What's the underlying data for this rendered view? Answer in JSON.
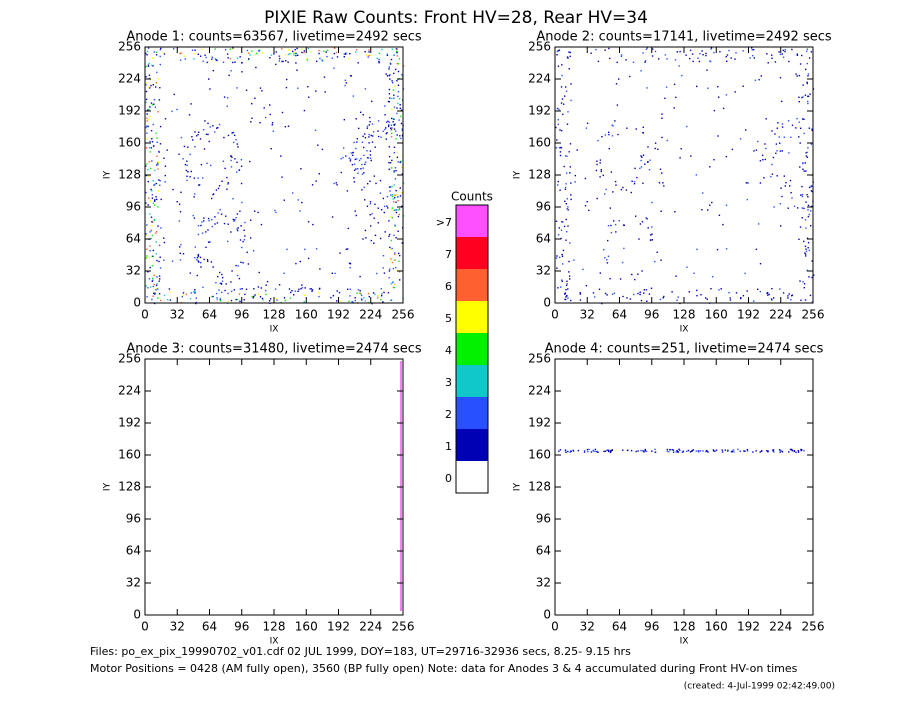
{
  "title": "PIXIE Raw Counts:  Front HV=28, Rear HV=34",
  "panels": [
    {
      "title": "Anode 1: counts=63567, livetime=2492 secs",
      "xlabel": "IX",
      "ylabel": "IY",
      "xticks": [
        0,
        32,
        64,
        96,
        128,
        160,
        192,
        224,
        256
      ],
      "yticks": [
        0,
        32,
        64,
        96,
        128,
        160,
        192,
        224,
        256
      ]
    },
    {
      "title": "Anode 2: counts=17141, livetime=2492 secs",
      "xlabel": "IX",
      "ylabel": "IY",
      "xticks": [
        0,
        32,
        64,
        96,
        128,
        160,
        192,
        224,
        256
      ],
      "yticks": [
        0,
        32,
        64,
        96,
        128,
        160,
        192,
        224,
        256
      ]
    },
    {
      "title": "Anode 3: counts=31480, livetime=2474 secs",
      "xlabel": "IX",
      "ylabel": "IY",
      "xticks": [
        0,
        32,
        64,
        96,
        128,
        160,
        192,
        224,
        256
      ],
      "yticks": [
        0,
        32,
        64,
        96,
        128,
        160,
        192,
        224,
        256
      ]
    },
    {
      "title": "Anode 4: counts=251, livetime=2474 secs",
      "xlabel": "IX",
      "ylabel": "IY",
      "xticks": [
        0,
        32,
        64,
        96,
        128,
        160,
        192,
        224,
        256
      ],
      "yticks": [
        0,
        32,
        64,
        96,
        128,
        160,
        192,
        224,
        256
      ]
    }
  ],
  "colorbar": {
    "title": "Counts",
    "labels": [
      ">7",
      "7",
      "6",
      "5",
      "4",
      "3",
      "2",
      "1",
      "0"
    ],
    "colors": [
      "#ff50ff",
      "#ff0020",
      "#ff6030",
      "#ffff00",
      "#00f000",
      "#10c8c8",
      "#2850ff",
      "#0000b4",
      "#ffffff"
    ]
  },
  "footer": {
    "files": "Files: po_ex_pix_19990702_v01.cdf   02 JUL 1999, DOY=183, UT=29716-32936 secs,  8.25- 9.15 hrs",
    "motor": "Motor Positions = 0428 (AM fully open), 3560 (BP fully open)    Note: data for Anodes 3 & 4 accumulated during Front HV-on times",
    "created": "(created:  4-Jul-1999 02:42:49.00)"
  }
}
